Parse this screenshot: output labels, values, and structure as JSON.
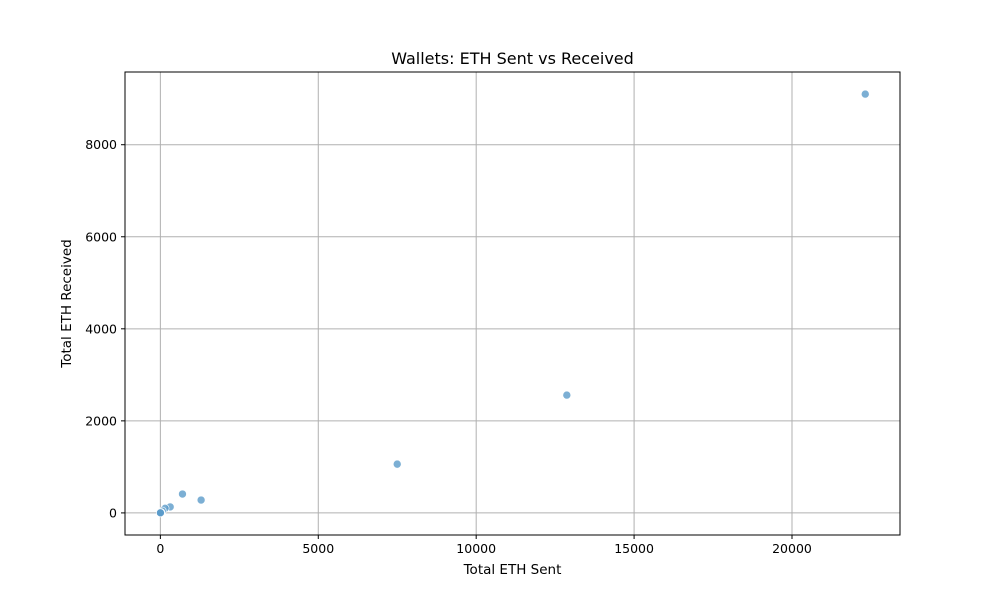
{
  "chart_data": {
    "type": "scatter",
    "title": "Wallets: ETH Sent vs Received",
    "xlabel": "Total ETH Sent",
    "ylabel": "Total ETH Received",
    "xlim": [
      -1120,
      23420
    ],
    "ylim": [
      -480,
      9580
    ],
    "xticks": [
      0,
      5000,
      10000,
      15000,
      20000
    ],
    "yticks": [
      0,
      2000,
      4000,
      6000,
      8000
    ],
    "grid": true,
    "marker_color": "#5b9bc9",
    "marker_alpha": 0.8,
    "points": [
      {
        "x": 22320,
        "y": 9100
      },
      {
        "x": 12870,
        "y": 2560
      },
      {
        "x": 7500,
        "y": 1060
      },
      {
        "x": 1290,
        "y": 280
      },
      {
        "x": 700,
        "y": 410
      },
      {
        "x": 310,
        "y": 130
      },
      {
        "x": 150,
        "y": 100
      },
      {
        "x": 60,
        "y": 40
      },
      {
        "x": 20,
        "y": 10
      },
      {
        "x": 5,
        "y": 0
      },
      {
        "x": 0,
        "y": 5
      },
      {
        "x": 2,
        "y": 2
      }
    ]
  }
}
